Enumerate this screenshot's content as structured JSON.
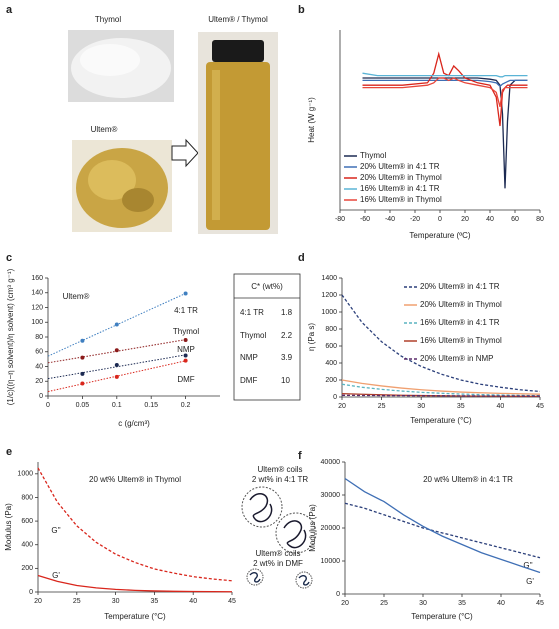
{
  "panel_labels": [
    "a",
    "b",
    "c",
    "d",
    "e",
    "f"
  ],
  "photos": {
    "thymol": "Thymol",
    "ultem": "Ultem®",
    "mixture": "Ultem® / Thymol"
  },
  "table": {
    "header": "C* (wt%)",
    "rows": [
      [
        "4:1 TR",
        1.8
      ],
      [
        "Thymol",
        2.2
      ],
      [
        "NMP",
        3.9
      ],
      [
        "DMF",
        10
      ]
    ]
  },
  "schematic": {
    "coils_tr": [
      "Ultem® coils",
      "2 wt% in 4:1 TR"
    ],
    "coils_dmf": [
      "Ultem® coils",
      "2 wt% in DMF"
    ]
  },
  "chart_data": [
    {
      "type": "line",
      "x_label": "Temperature (ºC)",
      "y_label": "Heat (W g⁻¹)",
      "xlim": [
        -80,
        80
      ],
      "xticks": [
        -80,
        -60,
        -40,
        -20,
        0,
        20,
        40,
        60,
        80
      ],
      "ylim": [
        -5.5,
        2
      ],
      "legend": "lower left",
      "x": [
        -62,
        -50,
        -30,
        -10,
        -5,
        -1,
        3,
        7,
        11,
        15,
        20,
        30,
        40,
        45,
        48,
        50,
        52,
        54,
        56,
        60,
        70
      ],
      "series": [
        {
          "name": "Thymol",
          "color": "#1c2a52",
          "values": [
            0,
            0,
            0,
            0,
            0,
            0,
            0,
            0,
            0,
            0,
            0,
            0,
            -0.05,
            -0.1,
            -0.3,
            -1.5,
            -4.6,
            -1.8,
            -0.3,
            -0.1,
            -0.1
          ]
        },
        {
          "name": "20% Ultem® in 4:1 TR",
          "color": "#3f6fb5",
          "values": [
            -0.1,
            -0.1,
            -0.1,
            -0.1,
            -0.1,
            -0.1,
            -0.1,
            -0.1,
            -0.1,
            -0.1,
            -0.1,
            -0.1,
            -0.15,
            -0.2,
            -0.35,
            -0.25,
            -0.2,
            -0.15,
            -0.1,
            -0.1,
            -0.1
          ]
        },
        {
          "name": "20% Ultem® in Thymol",
          "color": "#d9261c",
          "values": [
            -0.3,
            -0.3,
            -0.3,
            -0.2,
            0.2,
            1.0,
            0.2,
            0.1,
            0.5,
            0.3,
            0,
            -0.2,
            -0.3,
            -0.8,
            -2.0,
            -0.6,
            -0.4,
            -0.3,
            -0.3,
            -0.3,
            -0.3
          ]
        },
        {
          "name": "16% Ultem® in 4:1 TR",
          "color": "#5ab4d6",
          "values": [
            0.2,
            0.1,
            0.1,
            0.1,
            0.1,
            0.1,
            0.1,
            0.1,
            0.1,
            0.1,
            0.1,
            0.1,
            0.1,
            0.1,
            0.05,
            0.05,
            0.1,
            0.1,
            0.1,
            0.1,
            0.1
          ]
        },
        {
          "name": "16% Ultem® in Thymol",
          "color": "#e8453a",
          "values": [
            -0.4,
            -0.4,
            -0.4,
            -0.3,
            -0.2,
            0,
            0,
            -0.1,
            0,
            -0.1,
            -0.2,
            -0.3,
            -0.4,
            -0.6,
            -1.2,
            -0.5,
            -0.4,
            -0.4,
            -0.4,
            -0.4,
            -0.4
          ]
        }
      ]
    },
    {
      "type": "scatter",
      "x_label": "c (g/cm³)",
      "y_label": "(1/c)((η−η solvent)/η solvent) (cm³ g⁻¹)",
      "annotation": "Ultem®",
      "xlim": [
        0,
        0.25
      ],
      "xticks": [
        0,
        0.05,
        0.1,
        0.15,
        0.2
      ],
      "ylim": [
        0,
        160
      ],
      "yticks": [
        0,
        20,
        40,
        60,
        80,
        100,
        120,
        140,
        160
      ],
      "fit": true,
      "x": [
        0.05,
        0.1,
        0.2
      ],
      "series": [
        {
          "name": "4:1 TR",
          "color": "#3f7fc0",
          "values": [
            75,
            97,
            139
          ]
        },
        {
          "name": "Thymol",
          "color": "#8b1a1a",
          "values": [
            52,
            62,
            76
          ]
        },
        {
          "name": "NMP",
          "color": "#1c2a52",
          "values": [
            30,
            42,
            55
          ]
        },
        {
          "name": "DMF",
          "color": "#d9261c",
          "values": [
            17,
            26,
            48
          ]
        }
      ]
    },
    {
      "type": "line",
      "x_label": "Temperature (°C)",
      "y_label": "η (Pa s)",
      "legend": "upper right",
      "xlim": [
        20,
        45
      ],
      "xticks": [
        20,
        25,
        30,
        35,
        40,
        45
      ],
      "ylim": [
        0,
        1400
      ],
      "yticks": [
        0,
        200,
        400,
        600,
        800,
        1000,
        1200,
        1400
      ],
      "x": [
        20,
        22.5,
        25,
        27.5,
        30,
        32.5,
        35,
        37.5,
        40,
        42.5,
        45
      ],
      "series": [
        {
          "name": "20% Ultem® in 4:1 TR",
          "color": "#2b3f7a",
          "dash": true,
          "values": [
            1200,
            880,
            650,
            480,
            360,
            270,
            200,
            150,
            115,
            85,
            65
          ]
        },
        {
          "name": "20% Ultem® in Thymol",
          "color": "#f0a070",
          "dash": false,
          "values": [
            200,
            160,
            130,
            105,
            85,
            70,
            58,
            50,
            43,
            38,
            33
          ]
        },
        {
          "name": "16% Ultem® in 4:1 TR",
          "color": "#5ab4c0",
          "dash": true,
          "values": [
            150,
            115,
            90,
            70,
            55,
            44,
            35,
            28,
            23,
            19,
            16
          ]
        },
        {
          "name": "16% Ultem® in Thymol",
          "color": "#b0402a",
          "dash": false,
          "values": [
            40,
            32,
            26,
            21,
            17,
            14,
            12,
            10,
            9,
            8,
            7
          ]
        },
        {
          "name": "20% Ultem® in NMP",
          "color": "#5a2a6a",
          "dash": true,
          "values": [
            20,
            18,
            17,
            16,
            15,
            14,
            13,
            12,
            12,
            11,
            11
          ]
        }
      ]
    },
    {
      "type": "line",
      "title": "20 wt% Ultem® in Thymol",
      "x_label": "Temperature (°C)",
      "y_label": "Modulus (Pa)",
      "xlim": [
        20,
        45
      ],
      "xticks": [
        20,
        25,
        30,
        35,
        40,
        45
      ],
      "ylim": [
        0,
        1100
      ],
      "yticks": [
        0,
        200,
        400,
        600,
        800,
        1000
      ],
      "x": [
        20,
        22.5,
        25,
        27.5,
        30,
        32.5,
        35,
        37.5,
        40,
        42.5,
        45
      ],
      "series": [
        {
          "name": "G''",
          "color": "#d9261c",
          "dash": true,
          "values": [
            1050,
            760,
            560,
            420,
            320,
            250,
            195,
            160,
            130,
            110,
            95
          ]
        },
        {
          "name": "G'",
          "color": "#d9261c",
          "dash": false,
          "values": [
            140,
            90,
            55,
            35,
            22,
            14,
            9,
            6,
            4,
            3,
            2
          ]
        }
      ]
    },
    {
      "type": "line",
      "title": "20 wt% Ultem® in 4:1 TR",
      "x_label": "Temperature (°C)",
      "y_label": "Modulus (Pa)",
      "xlim": [
        20,
        45
      ],
      "xticks": [
        20,
        25,
        30,
        35,
        40,
        45
      ],
      "ylim": [
        0,
        40000
      ],
      "yticks": [
        0,
        10000,
        20000,
        30000,
        40000
      ],
      "x": [
        20,
        22.5,
        25,
        27.5,
        30,
        32.5,
        35,
        37.5,
        40,
        42.5,
        45
      ],
      "series": [
        {
          "name": "G''",
          "color": "#2b3f7a",
          "dash": true,
          "values": [
            27500,
            26000,
            24000,
            22000,
            20000,
            18500,
            17000,
            15500,
            14000,
            12500,
            11000
          ]
        },
        {
          "name": "G'",
          "color": "#3f6fb5",
          "dash": false,
          "values": [
            35000,
            31000,
            28000,
            24000,
            20500,
            17500,
            15000,
            12500,
            10500,
            8500,
            6500
          ]
        }
      ]
    }
  ]
}
